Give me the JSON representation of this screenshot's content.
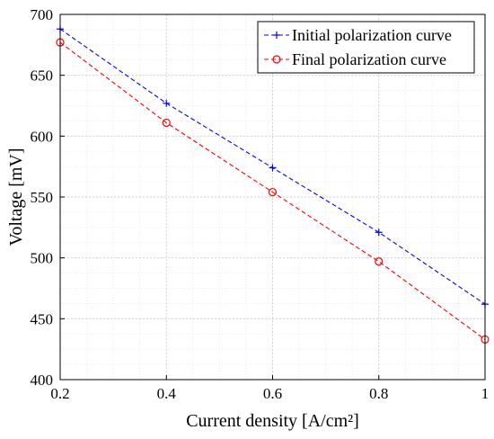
{
  "chart_data": {
    "type": "line",
    "title": "",
    "xlabel": "Current density [A/cm²]",
    "ylabel": "Voltage [mV]",
    "xlim": [
      0.2,
      1
    ],
    "ylim": [
      400,
      700
    ],
    "xticks": [
      0.2,
      0.4,
      0.6,
      0.8,
      1
    ],
    "xtick_labels": [
      "0.2",
      "0.4",
      "0.6",
      "0.8",
      "1"
    ],
    "yticks": [
      400,
      450,
      500,
      550,
      600,
      650,
      700
    ],
    "ytick_labels": [
      "400",
      "450",
      "500",
      "550",
      "600",
      "650",
      "700"
    ],
    "grid": "major and minor dotted",
    "legend_position": "top-right",
    "x": [
      0.2,
      0.4,
      0.6,
      0.8,
      1
    ],
    "series": [
      {
        "name": "Initial polarization curve",
        "values": [
          688,
          627,
          574,
          521,
          462
        ],
        "color": "#0000ff",
        "line_style": "dashed",
        "marker": "plus"
      },
      {
        "name": "Final polarization curve",
        "values": [
          677,
          611,
          554,
          497,
          433
        ],
        "color": "#ff0000",
        "line_style": "dashed",
        "marker": "circle"
      }
    ]
  }
}
